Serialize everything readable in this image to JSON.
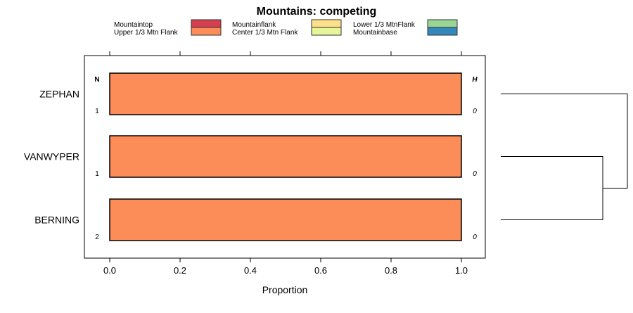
{
  "chart_data": {
    "type": "bar",
    "orientation": "horizontal",
    "stacked": true,
    "title": "Mountains: competing",
    "xlabel": "Proportion",
    "ylabel": "",
    "xlim": [
      0,
      1
    ],
    "xticks": [
      "0.0",
      "0.2",
      "0.4",
      "0.6",
      "0.8",
      "1.0"
    ],
    "xtick_values": [
      0,
      0.2,
      0.4,
      0.6,
      0.8,
      1.0
    ],
    "categories": [
      "ZEPHAN",
      "VANWYPER",
      "BERNING"
    ],
    "n_header": "N",
    "h_header": "H",
    "n_values": [
      "1",
      "1",
      "2"
    ],
    "h_values": [
      "0",
      "0",
      "0"
    ],
    "series": [
      {
        "name": "Mountaintop",
        "color": "#D53E4F",
        "values": [
          0,
          0,
          0
        ]
      },
      {
        "name": "Upper 1/3 Mtn Flank",
        "color": "#FC8D59",
        "values": [
          1,
          1,
          1
        ]
      },
      {
        "name": "Mountainflank",
        "color": "#FEE08B",
        "values": [
          0,
          0,
          0
        ]
      },
      {
        "name": "Center 1/3 Mtn Flank",
        "color": "#E6F598",
        "values": [
          0,
          0,
          0
        ]
      },
      {
        "name": "Lower 1/3 MtnFlank",
        "color": "#99D594",
        "values": [
          0,
          0,
          0
        ]
      },
      {
        "name": "Mountainbase",
        "color": "#3288BD",
        "values": [
          0,
          0,
          0
        ]
      }
    ],
    "legend_placement": "top",
    "dendrogram": {
      "merges": [
        [
          "VANWYPER",
          "BERNING"
        ],
        [
          "ZEPHAN",
          "VANWYPER+BERNING"
        ]
      ]
    }
  }
}
